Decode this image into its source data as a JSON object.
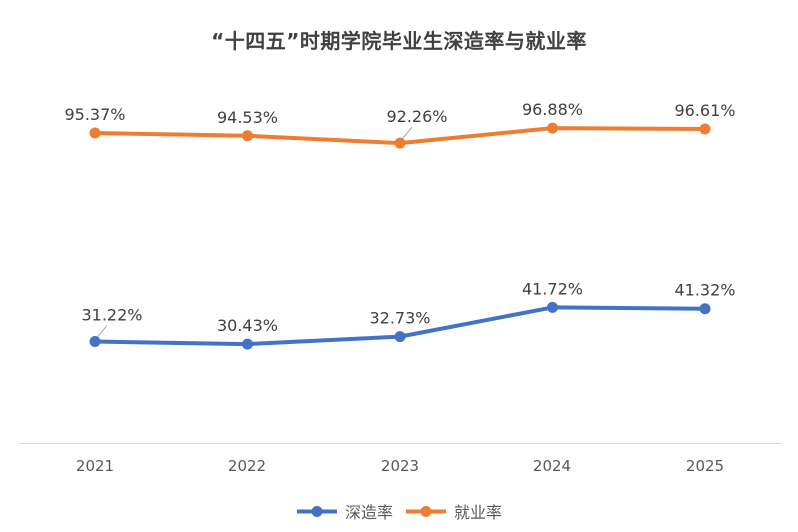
{
  "chart_data": {
    "type": "line",
    "title": "“十四五”时期学院毕业生深造率与就业率",
    "categories": [
      "2021",
      "2022",
      "2023",
      "2024",
      "2025"
    ],
    "series": [
      {
        "id": "further-study-rate",
        "name": "深造率",
        "color": "#4472C4",
        "values": [
          31.22,
          30.43,
          32.73,
          41.72,
          41.32
        ],
        "labels": [
          "31.22%",
          "30.43%",
          "32.73%",
          "41.72%",
          "41.32%"
        ]
      },
      {
        "id": "employment-rate",
        "name": "就业率",
        "color": "#ED7D31",
        "values": [
          95.37,
          94.53,
          92.26,
          96.88,
          96.61
        ],
        "labels": [
          "95.37%",
          "94.53%",
          "92.26%",
          "96.88%",
          "96.61%"
        ]
      }
    ],
    "label_suffix": "%",
    "xlabel": "",
    "ylabel": "",
    "ylim": [
      0,
      115
    ],
    "grid": false,
    "legend_position": "bottom",
    "axis_line_color": "#D9D9D9",
    "leader_line_color": "#A6A6A6",
    "title_color": "#404040",
    "data_label_color": "#404040",
    "tick_color": "#595959"
  }
}
